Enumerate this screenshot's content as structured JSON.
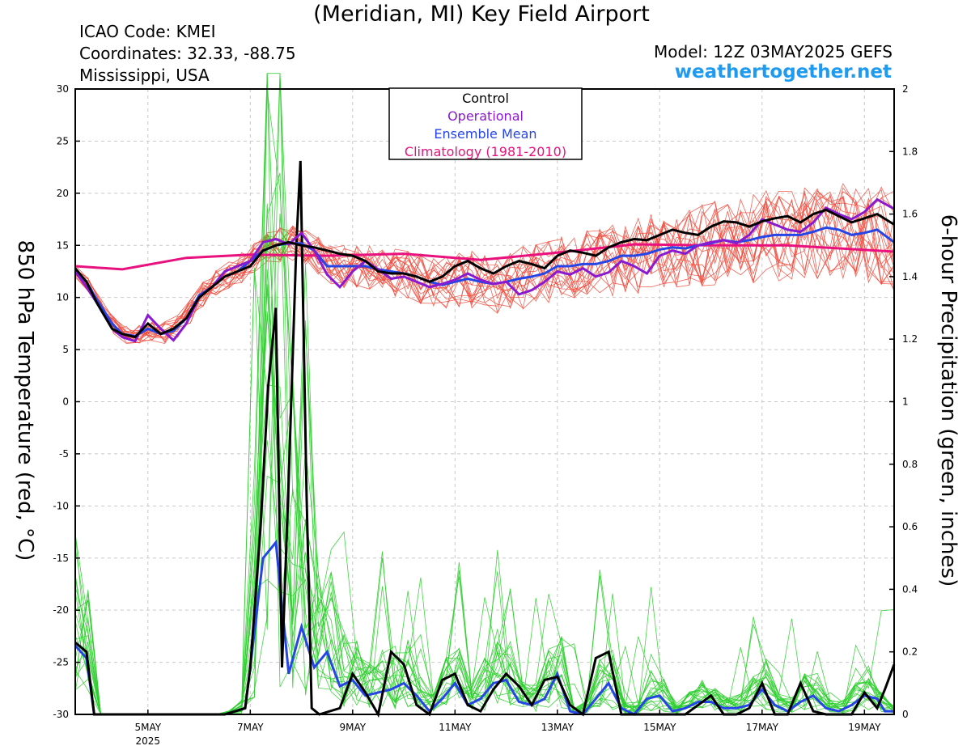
{
  "header": {
    "title": "(Meridian, MI) Key Field Airport",
    "icao": "ICAO Code: KMEI",
    "coordinates": "Coordinates: 32.33, -88.75",
    "region": "Mississippi, USA",
    "model": "Model: 12Z 03MAY2025 GEFS",
    "site": "weathertogether.net"
  },
  "colors": {
    "control": "#000000",
    "operational": "#8a1ad0",
    "ensemble_mean": "#2545e6",
    "climatology": "#e8117d",
    "members_temp": "#f0493a",
    "members_precip": "#2ece2e"
  },
  "chart_data": {
    "type": "line",
    "title": "(Meridian, MI) Key Field Airport",
    "ylabel": "850 hPa Temperature (red, °C)",
    "y2label": "6-hour Precipitation (green, inches)",
    "ylim": [
      -30,
      30
    ],
    "y2lim": [
      0,
      2
    ],
    "y_ticks": [
      30,
      25,
      20,
      15,
      10,
      5,
      0,
      -5,
      -10,
      -15,
      -20,
      -25,
      -30
    ],
    "y2_ticks": [
      "2",
      "1.8",
      "1.6",
      "1.4",
      "1.2",
      "1",
      "0.8",
      "0.6",
      "0.4",
      "0.2",
      "0"
    ],
    "xlim_days": [
      3.58,
      19.58
    ],
    "x_ticks": [
      {
        "day": 5,
        "label": "5MAY",
        "sublabel": "2025"
      },
      {
        "day": 7,
        "label": "7MAY"
      },
      {
        "day": 9,
        "label": "9MAY"
      },
      {
        "day": 11,
        "label": "11MAY"
      },
      {
        "day": 13,
        "label": "13MAY"
      },
      {
        "day": 15,
        "label": "15MAY"
      },
      {
        "day": 17,
        "label": "17MAY"
      },
      {
        "day": 19,
        "label": "19MAY"
      }
    ],
    "legend": {
      "position": "top-center",
      "entries": [
        {
          "label": "Control",
          "key": "control"
        },
        {
          "label": "Operational",
          "key": "operational"
        },
        {
          "label": "Ensemble Mean",
          "key": "ensemble_mean"
        },
        {
          "label": "Climatology (1981-2010)",
          "key": "climatology"
        }
      ]
    },
    "temperature": {
      "climatology": [
        [
          3.58,
          13.0
        ],
        [
          4.5,
          12.7
        ],
        [
          5.75,
          13.8
        ],
        [
          7,
          14.1
        ],
        [
          8.5,
          14.0
        ],
        [
          10,
          14.2
        ],
        [
          11.5,
          13.6
        ],
        [
          13,
          14.3
        ],
        [
          14.5,
          15.1
        ],
        [
          16,
          15.0
        ],
        [
          17.5,
          15.0
        ],
        [
          19.58,
          14.4
        ]
      ],
      "control": [
        [
          3.58,
          12.8
        ],
        [
          3.8,
          11.5
        ],
        [
          4,
          9.5
        ],
        [
          4.3,
          7
        ],
        [
          4.5,
          6.5
        ],
        [
          4.75,
          6.2
        ],
        [
          5,
          7.5
        ],
        [
          5.25,
          6.5
        ],
        [
          5.5,
          7
        ],
        [
          5.75,
          8
        ],
        [
          6,
          10
        ],
        [
          6.25,
          11
        ],
        [
          6.5,
          12
        ],
        [
          6.75,
          12.5
        ],
        [
          7,
          13
        ],
        [
          7.25,
          14.5
        ],
        [
          7.5,
          15
        ],
        [
          7.75,
          15.3
        ],
        [
          8,
          15
        ],
        [
          8.25,
          14.8
        ],
        [
          8.5,
          14.5
        ],
        [
          8.75,
          14.2
        ],
        [
          9,
          14
        ],
        [
          9.25,
          13.5
        ],
        [
          9.5,
          12.5
        ],
        [
          9.75,
          12.3
        ],
        [
          10,
          12.3
        ],
        [
          10.25,
          12
        ],
        [
          10.5,
          11.5
        ],
        [
          10.75,
          12
        ],
        [
          11,
          13
        ],
        [
          11.25,
          13.5
        ],
        [
          11.5,
          12.8
        ],
        [
          11.75,
          12.3
        ],
        [
          12,
          13
        ],
        [
          12.25,
          13.5
        ],
        [
          12.5,
          13.2
        ],
        [
          12.75,
          12.8
        ],
        [
          13,
          14
        ],
        [
          13.25,
          14.5
        ],
        [
          13.5,
          14.3
        ],
        [
          13.75,
          14
        ],
        [
          14,
          14.8
        ],
        [
          14.25,
          15.3
        ],
        [
          14.5,
          15.6
        ],
        [
          14.75,
          15.5
        ],
        [
          15,
          16
        ],
        [
          15.25,
          16.5
        ],
        [
          15.5,
          16.2
        ],
        [
          15.75,
          16
        ],
        [
          16,
          16.8
        ],
        [
          16.25,
          17.3
        ],
        [
          16.5,
          17.2
        ],
        [
          16.75,
          16.8
        ],
        [
          17,
          17.3
        ],
        [
          17.25,
          17.6
        ],
        [
          17.5,
          17.8
        ],
        [
          17.75,
          17.2
        ],
        [
          18,
          18
        ],
        [
          18.25,
          18.4
        ],
        [
          18.5,
          17.8
        ],
        [
          18.75,
          17.2
        ],
        [
          19,
          17.6
        ],
        [
          19.25,
          18
        ],
        [
          19.58,
          17
        ]
      ],
      "operational": [
        [
          3.58,
          12.5
        ],
        [
          3.8,
          11
        ],
        [
          4,
          9.5
        ],
        [
          4.3,
          7
        ],
        [
          4.5,
          6.2
        ],
        [
          4.75,
          5.8
        ],
        [
          5,
          8.3
        ],
        [
          5.25,
          7
        ],
        [
          5.5,
          5.9
        ],
        [
          5.75,
          7.5
        ],
        [
          6,
          10
        ],
        [
          6.25,
          11
        ],
        [
          6.5,
          12.5
        ],
        [
          6.75,
          13
        ],
        [
          7,
          13.5
        ],
        [
          7.25,
          15.3
        ],
        [
          7.5,
          15.6
        ],
        [
          7.75,
          15.1
        ],
        [
          8,
          16.2
        ],
        [
          8.25,
          14.5
        ],
        [
          8.5,
          12.2
        ],
        [
          8.75,
          11
        ],
        [
          9,
          12.5
        ],
        [
          9.25,
          13.5
        ],
        [
          9.5,
          12.7
        ],
        [
          9.75,
          11.8
        ],
        [
          10,
          12
        ],
        [
          10.25,
          11.5
        ],
        [
          10.5,
          11
        ],
        [
          10.75,
          11.3
        ],
        [
          11,
          11.7
        ],
        [
          11.25,
          12.3
        ],
        [
          11.5,
          11.7
        ],
        [
          11.75,
          11.3
        ],
        [
          12,
          11.5
        ],
        [
          12.25,
          10.3
        ],
        [
          12.5,
          10.7
        ],
        [
          12.75,
          11.5
        ],
        [
          13,
          12.5
        ],
        [
          13.25,
          12.2
        ],
        [
          13.5,
          12.8
        ],
        [
          13.75,
          12
        ],
        [
          14,
          12.4
        ],
        [
          14.25,
          13.5
        ],
        [
          14.5,
          13
        ],
        [
          14.75,
          12.3
        ],
        [
          15,
          14
        ],
        [
          15.25,
          14.5
        ],
        [
          15.5,
          14.2
        ],
        [
          15.75,
          15
        ],
        [
          16,
          15.3
        ],
        [
          16.25,
          15.5
        ],
        [
          16.5,
          15.2
        ],
        [
          16.75,
          16
        ],
        [
          17,
          17.5
        ],
        [
          17.25,
          17
        ],
        [
          17.5,
          16.5
        ],
        [
          17.75,
          16.3
        ],
        [
          18,
          17.2
        ],
        [
          18.25,
          18.6
        ],
        [
          18.5,
          18
        ],
        [
          18.75,
          17.5
        ],
        [
          19,
          18.2
        ],
        [
          19.25,
          19.4
        ],
        [
          19.58,
          18.5
        ]
      ],
      "ensemble_mean": [
        [
          3.58,
          12.5
        ],
        [
          3.8,
          11.5
        ],
        [
          4,
          9.8
        ],
        [
          4.3,
          7.5
        ],
        [
          4.5,
          6.5
        ],
        [
          4.75,
          6.3
        ],
        [
          5,
          7
        ],
        [
          5.25,
          6.5
        ],
        [
          5.5,
          6.8
        ],
        [
          5.75,
          8
        ],
        [
          6,
          10.2
        ],
        [
          6.25,
          11
        ],
        [
          6.5,
          12
        ],
        [
          6.75,
          12.5
        ],
        [
          7,
          13.5
        ],
        [
          7.25,
          14.5
        ],
        [
          7.5,
          15
        ],
        [
          7.75,
          15.2
        ],
        [
          8,
          15.2
        ],
        [
          8.25,
          14.5
        ],
        [
          8.5,
          13
        ],
        [
          8.75,
          13
        ],
        [
          9,
          13
        ],
        [
          9.25,
          13
        ],
        [
          9.5,
          12.7
        ],
        [
          9.75,
          12.5
        ],
        [
          10,
          12.3
        ],
        [
          10.25,
          12
        ],
        [
          10.5,
          11.5
        ],
        [
          10.75,
          11.2
        ],
        [
          11,
          11.5
        ],
        [
          11.25,
          11.8
        ],
        [
          11.5,
          11.5
        ],
        [
          11.75,
          11.3
        ],
        [
          12,
          11.5
        ],
        [
          12.25,
          11.8
        ],
        [
          12.5,
          12
        ],
        [
          12.75,
          12.3
        ],
        [
          13,
          13
        ],
        [
          13.25,
          13
        ],
        [
          13.5,
          13.2
        ],
        [
          13.75,
          13.2
        ],
        [
          14,
          13.5
        ],
        [
          14.25,
          14
        ],
        [
          14.5,
          14
        ],
        [
          14.75,
          14.2
        ],
        [
          15,
          14.6
        ],
        [
          15.25,
          14.8
        ],
        [
          15.5,
          14.7
        ],
        [
          15.75,
          15
        ],
        [
          16,
          15.2
        ],
        [
          16.25,
          15.5
        ],
        [
          16.5,
          15.3
        ],
        [
          16.75,
          15.5
        ],
        [
          17,
          15.8
        ],
        [
          17.25,
          16
        ],
        [
          17.5,
          16
        ],
        [
          17.75,
          16
        ],
        [
          18,
          16.3
        ],
        [
          18.25,
          16.7
        ],
        [
          18.5,
          16.5
        ],
        [
          18.75,
          16
        ],
        [
          19,
          16.2
        ],
        [
          19.25,
          16.5
        ],
        [
          19.58,
          15.3
        ]
      ]
    },
    "precipitation": {
      "control": [
        [
          3.58,
          0.23
        ],
        [
          3.8,
          0.2
        ],
        [
          3.95,
          0
        ],
        [
          6.5,
          0
        ],
        [
          6.9,
          0.02
        ],
        [
          7,
          0.15
        ],
        [
          7.2,
          0.6
        ],
        [
          7.35,
          1.05
        ],
        [
          7.5,
          1.3
        ],
        [
          7.62,
          0.15
        ],
        [
          7.75,
          0.75
        ],
        [
          7.9,
          1.5
        ],
        [
          7.98,
          1.77
        ],
        [
          8.1,
          0.7
        ],
        [
          8.2,
          0.02
        ],
        [
          8.35,
          0
        ],
        [
          8.75,
          0.02
        ],
        [
          9,
          0.13
        ],
        [
          9.25,
          0.07
        ],
        [
          9.5,
          0
        ],
        [
          9.75,
          0.2
        ],
        [
          10,
          0.16
        ],
        [
          10.25,
          0.03
        ],
        [
          10.5,
          0
        ],
        [
          10.75,
          0.11
        ],
        [
          11,
          0.13
        ],
        [
          11.25,
          0.03
        ],
        [
          11.5,
          0.01
        ],
        [
          11.75,
          0.08
        ],
        [
          12,
          0.13
        ],
        [
          12.25,
          0.09
        ],
        [
          12.5,
          0.03
        ],
        [
          12.75,
          0.11
        ],
        [
          13,
          0.12
        ],
        [
          13.25,
          0.03
        ],
        [
          13.5,
          0
        ],
        [
          13.75,
          0.18
        ],
        [
          14,
          0.2
        ],
        [
          14.25,
          0
        ],
        [
          14.75,
          0
        ],
        [
          15,
          0
        ],
        [
          15.5,
          0
        ],
        [
          15.75,
          0.03
        ],
        [
          16,
          0.06
        ],
        [
          16.25,
          0
        ],
        [
          16.5,
          0
        ],
        [
          16.75,
          0.02
        ],
        [
          17,
          0.1
        ],
        [
          17.25,
          0
        ],
        [
          17.5,
          0
        ],
        [
          17.75,
          0.1
        ],
        [
          18,
          0.01
        ],
        [
          18.25,
          0
        ],
        [
          18.5,
          0
        ],
        [
          18.75,
          0
        ],
        [
          19,
          0.07
        ],
        [
          19.25,
          0.02
        ],
        [
          19.4,
          0.08
        ],
        [
          19.58,
          0.16
        ]
      ],
      "ensemble_mean": [
        [
          3.58,
          0.22
        ],
        [
          3.8,
          0.18
        ],
        [
          3.95,
          0
        ],
        [
          6.5,
          0
        ],
        [
          6.9,
          0.02
        ],
        [
          7,
          0.15
        ],
        [
          7.25,
          0.5
        ],
        [
          7.5,
          0.55
        ],
        [
          7.75,
          0.13
        ],
        [
          8,
          0.28
        ],
        [
          8.25,
          0.15
        ],
        [
          8.5,
          0.2
        ],
        [
          8.75,
          0.09
        ],
        [
          9,
          0.11
        ],
        [
          9.25,
          0.06
        ],
        [
          9.5,
          0.07
        ],
        [
          9.75,
          0.08
        ],
        [
          10,
          0.1
        ],
        [
          10.25,
          0.06
        ],
        [
          10.5,
          0.01
        ],
        [
          10.75,
          0.05
        ],
        [
          11,
          0.1
        ],
        [
          11.25,
          0.03
        ],
        [
          11.5,
          0.05
        ],
        [
          11.75,
          0.1
        ],
        [
          12,
          0.11
        ],
        [
          12.25,
          0.04
        ],
        [
          12.5,
          0.03
        ],
        [
          12.75,
          0.05
        ],
        [
          13,
          0.13
        ],
        [
          13.25,
          0.01
        ],
        [
          13.5,
          0
        ],
        [
          13.75,
          0.05
        ],
        [
          14,
          0.1
        ],
        [
          14.25,
          0.02
        ],
        [
          14.5,
          0
        ],
        [
          14.75,
          0.05
        ],
        [
          15,
          0.06
        ],
        [
          15.25,
          0.01
        ],
        [
          15.5,
          0.02
        ],
        [
          15.75,
          0.04
        ],
        [
          16,
          0.04
        ],
        [
          16.25,
          0.02
        ],
        [
          16.5,
          0.02
        ],
        [
          16.75,
          0.03
        ],
        [
          17,
          0.08
        ],
        [
          17.25,
          0.03
        ],
        [
          17.5,
          0.01
        ],
        [
          17.75,
          0.04
        ],
        [
          18,
          0.06
        ],
        [
          18.25,
          0.02
        ],
        [
          18.5,
          0.01
        ],
        [
          18.75,
          0.03
        ],
        [
          19,
          0.06
        ],
        [
          19.25,
          0.05
        ],
        [
          19.4,
          0.01
        ],
        [
          19.58,
          0.01
        ]
      ]
    }
  }
}
